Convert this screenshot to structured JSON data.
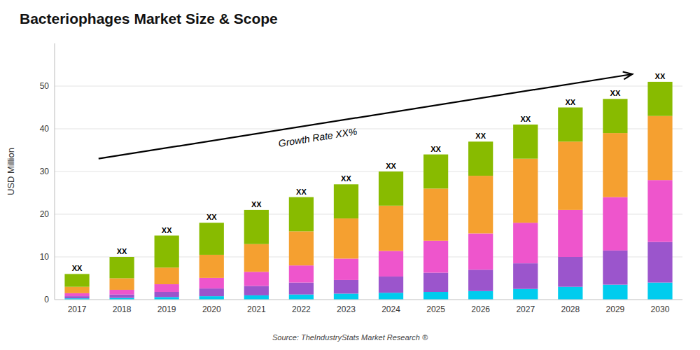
{
  "chart_data": {
    "type": "bar",
    "stacked": true,
    "title": "Bacteriophages Market Size & Scope",
    "y_label": "USD Million",
    "source": "Source: TheIndustryStats Market Research ®",
    "categories": [
      "2017",
      "2018",
      "2019",
      "2020",
      "2021",
      "2022",
      "2023",
      "2024",
      "2025",
      "2026",
      "2027",
      "2028",
      "2029",
      "2030"
    ],
    "series": [
      {
        "color": "#00CCEE",
        "values": [
          0.3,
          0.4,
          0.6,
          0.8,
          1.0,
          1.2,
          1.4,
          1.6,
          1.8,
          2.0,
          2.5,
          3.0,
          3.5,
          4.0
        ]
      },
      {
        "color": "#9B55CC",
        "values": [
          0.5,
          0.8,
          1.2,
          1.8,
          2.2,
          2.8,
          3.2,
          3.8,
          4.5,
          5.0,
          6.0,
          7.0,
          8.0,
          9.5
        ]
      },
      {
        "color": "#EE55CC",
        "values": [
          0.7,
          1.1,
          1.8,
          2.5,
          3.3,
          4.0,
          5.0,
          6.0,
          7.5,
          8.5,
          9.5,
          11.0,
          12.5,
          14.5
        ]
      },
      {
        "color": "#F5A030",
        "values": [
          1.5,
          2.7,
          3.9,
          5.4,
          6.5,
          8.0,
          9.4,
          10.6,
          12.2,
          13.5,
          15.0,
          16.0,
          15.0,
          15.0
        ]
      },
      {
        "color": "#88BB00",
        "values": [
          3.0,
          5.0,
          7.5,
          7.5,
          8.0,
          8.0,
          8.0,
          8.0,
          8.0,
          8.0,
          8.0,
          8.0,
          8.0,
          8.0
        ]
      }
    ],
    "annotations": [
      {
        "text": "Growth Rate XX%"
      },
      {
        "text": "XX",
        "x": "2017",
        "y": 6
      },
      {
        "text": "XX",
        "x": "2018",
        "y": 10
      },
      {
        "text": "XX",
        "x": "2019",
        "y": 15
      },
      {
        "text": "XX",
        "x": "2020",
        "y": 18
      },
      {
        "text": "XX",
        "x": "2021",
        "y": 21
      },
      {
        "text": "XX",
        "x": "2022",
        "y": 24
      },
      {
        "text": "XX",
        "x": "2023",
        "y": 27
      },
      {
        "text": "XX",
        "x": "2024",
        "y": 30
      },
      {
        "text": "XX",
        "x": "2025",
        "y": 34
      },
      {
        "text": "XX",
        "x": "2026",
        "y": 37
      },
      {
        "text": "XX",
        "x": "2027",
        "y": 41
      },
      {
        "text": "XX",
        "x": "2028",
        "y": 45
      },
      {
        "text": "XX",
        "x": "2029",
        "y": 47
      },
      {
        "text": "XX",
        "x": "2030",
        "y": 51
      }
    ],
    "ylim": [
      0,
      60
    ],
    "yticks": [
      0,
      10,
      20,
      30,
      40,
      50
    ],
    "grid": true
  }
}
